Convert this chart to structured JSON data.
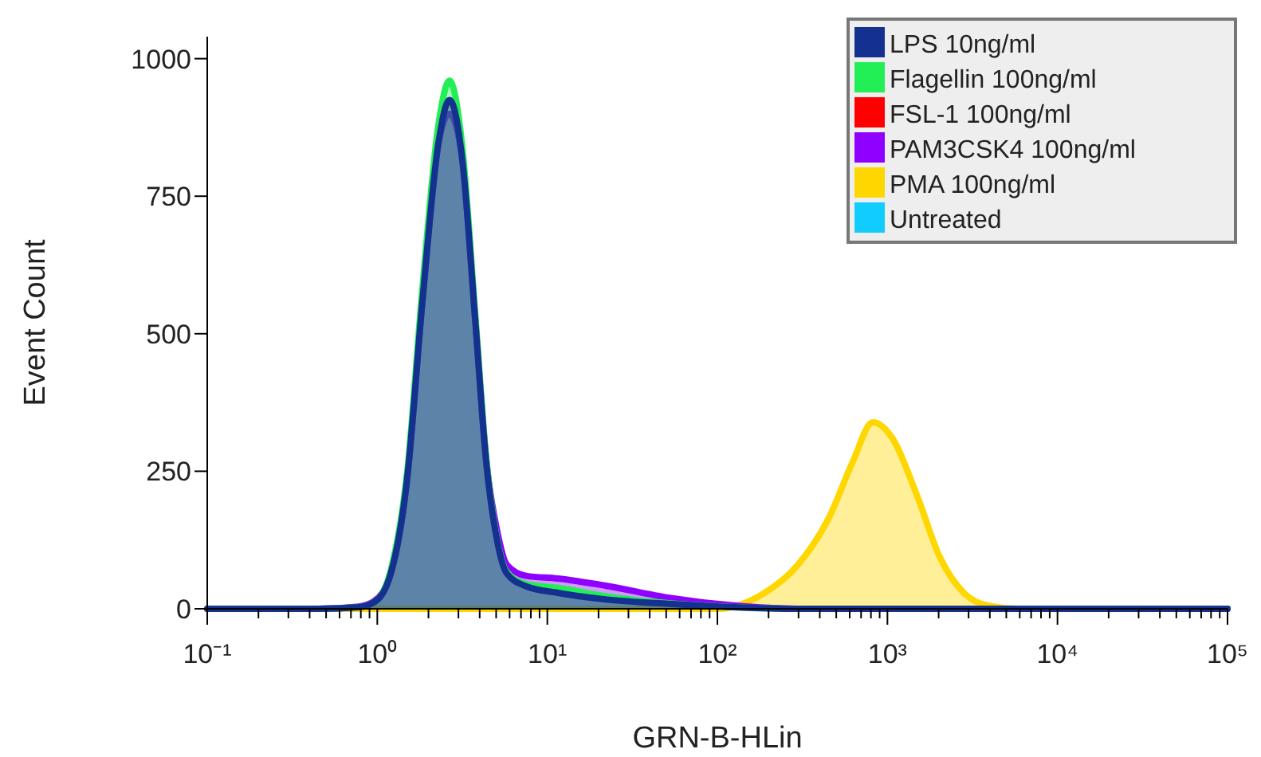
{
  "chart_data": {
    "type": "area",
    "xlabel": "GRN-B-HLin",
    "ylabel": "Event Count",
    "log": "x",
    "xlim": [
      0.1,
      100000
    ],
    "ylim": [
      0,
      1040
    ],
    "yticks": [
      0,
      250,
      500,
      750,
      1000
    ],
    "xticks": [
      {
        "value": 0.1,
        "label": "10⁻¹"
      },
      {
        "value": 0.2,
        "label": null
      },
      {
        "value": 0.3,
        "label": null
      },
      {
        "value": 0.4,
        "label": null
      },
      {
        "value": 0.5,
        "label": null
      },
      {
        "value": 0.6,
        "label": null
      },
      {
        "value": 0.7,
        "label": null
      },
      {
        "value": 0.8,
        "label": null
      },
      {
        "value": 0.9,
        "label": null
      },
      {
        "value": 1,
        "label": "10⁰"
      },
      {
        "value": 2,
        "label": null
      },
      {
        "value": 3,
        "label": null
      },
      {
        "value": 4,
        "label": null
      },
      {
        "value": 5,
        "label": null
      },
      {
        "value": 6,
        "label": null
      },
      {
        "value": 7,
        "label": null
      },
      {
        "value": 8,
        "label": null
      },
      {
        "value": 9,
        "label": null
      },
      {
        "value": 10,
        "label": "10¹"
      },
      {
        "value": 20,
        "label": null
      },
      {
        "value": 30,
        "label": null
      },
      {
        "value": 40,
        "label": null
      },
      {
        "value": 50,
        "label": null
      },
      {
        "value": 60,
        "label": null
      },
      {
        "value": 70,
        "label": null
      },
      {
        "value": 80,
        "label": null
      },
      {
        "value": 90,
        "label": null
      },
      {
        "value": 100,
        "label": "10²"
      },
      {
        "value": 200,
        "label": null
      },
      {
        "value": 300,
        "label": null
      },
      {
        "value": 400,
        "label": null
      },
      {
        "value": 500,
        "label": null
      },
      {
        "value": 600,
        "label": null
      },
      {
        "value": 700,
        "label": null
      },
      {
        "value": 800,
        "label": null
      },
      {
        "value": 900,
        "label": null
      },
      {
        "value": 1000,
        "label": "10³"
      },
      {
        "value": 2000,
        "label": null
      },
      {
        "value": 3000,
        "label": null
      },
      {
        "value": 4000,
        "label": null
      },
      {
        "value": 5000,
        "label": null
      },
      {
        "value": 6000,
        "label": null
      },
      {
        "value": 7000,
        "label": null
      },
      {
        "value": 8000,
        "label": null
      },
      {
        "value": 9000,
        "label": null
      },
      {
        "value": 10000,
        "label": "10⁴"
      },
      {
        "value": 20000,
        "label": null
      },
      {
        "value": 30000,
        "label": null
      },
      {
        "value": 40000,
        "label": null
      },
      {
        "value": 50000,
        "label": null
      },
      {
        "value": 60000,
        "label": null
      },
      {
        "value": 70000,
        "label": null
      },
      {
        "value": 80000,
        "label": null
      },
      {
        "value": 90000,
        "label": null
      },
      {
        "value": 100000,
        "label": "10⁵"
      }
    ],
    "x": [
      0.1,
      0.45,
      0.78,
      0.96,
      1.2,
      1.5,
      1.84,
      2.29,
      2.66,
      3.16,
      3.76,
      4.37,
      5.08,
      5.78,
      7.49,
      11.5,
      22,
      52,
      124,
      294,
      100000
    ],
    "legend": "top right",
    "grid": false,
    "series": [
      {
        "name": "LPS 10ng/ml",
        "color": "#15318f",
        "values": [
          0,
          0,
          3,
          12,
          64,
          238,
          557,
          847,
          925,
          817,
          528,
          267,
          122,
          64,
          41,
          29,
          17,
          9,
          3,
          0,
          0
        ]
      },
      {
        "name": "Flagellin 100ng/ml",
        "color": "#22ee55",
        "values": [
          0,
          0,
          3,
          12,
          70,
          250,
          580,
          880,
          960,
          840,
          540,
          275,
          125,
          67,
          45,
          38,
          23,
          10,
          3,
          0,
          0
        ]
      },
      {
        "name": "FSL-1 100ng/ml",
        "color": "#ff0000",
        "values": [
          null,
          null,
          null,
          null,
          null,
          null,
          null,
          null,
          null,
          null,
          null,
          null,
          null,
          null,
          null,
          null,
          null,
          null,
          null,
          null,
          null
        ]
      },
      {
        "name": "PAM3CSK4 100ng/ml",
        "color": "#8f00ff",
        "values": [
          0,
          0,
          4,
          14,
          64,
          238,
          557,
          847,
          900,
          817,
          528,
          270,
          140,
          80,
          60,
          55,
          42,
          20,
          6,
          0,
          0
        ]
      },
      {
        "name": "PMA 100ng/ml",
        "color": "#ffd700",
        "x": [
          0.1,
          100,
          190,
          294,
          452,
          625,
          820,
          1070,
          1480,
          2040,
          2810,
          3890,
          6030,
          100000
        ],
        "values": [
          0,
          0,
          29,
          78,
          165,
          267,
          339,
          310,
          209,
          93,
          29,
          6,
          0,
          0
        ]
      },
      {
        "name": "Untreated",
        "color": "#11ccff",
        "values": [
          null,
          null,
          null,
          null,
          null,
          null,
          null,
          null,
          null,
          null,
          null,
          null,
          null,
          null,
          null,
          null,
          null,
          null,
          null,
          null,
          null
        ]
      }
    ]
  }
}
